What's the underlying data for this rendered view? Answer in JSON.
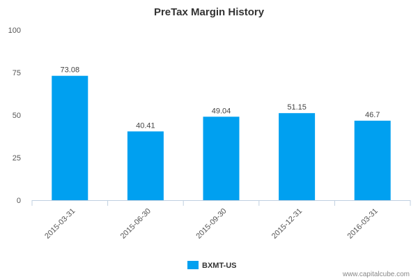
{
  "chart_data": {
    "type": "bar",
    "title": "PreTax Margin History",
    "categories": [
      "2015-03-31",
      "2015-06-30",
      "2015-09-30",
      "2015-12-31",
      "2016-03-31"
    ],
    "series": [
      {
        "name": "BXMT-US",
        "values": [
          73.08,
          40.41,
          49.04,
          51.15,
          46.7
        ],
        "labels": [
          "73.08",
          "40.41",
          "49.04",
          "51.15",
          "46.7"
        ]
      }
    ],
    "ylim": [
      0,
      100
    ],
    "yticks": [
      0,
      25,
      50,
      75,
      100
    ],
    "xlabel": "",
    "ylabel": "",
    "grid": false,
    "legend_position": "bottom-center"
  },
  "colors": {
    "bar": "#00a0f0",
    "axis": "#c0d0e0"
  },
  "credit": "www.capitalcube.com"
}
